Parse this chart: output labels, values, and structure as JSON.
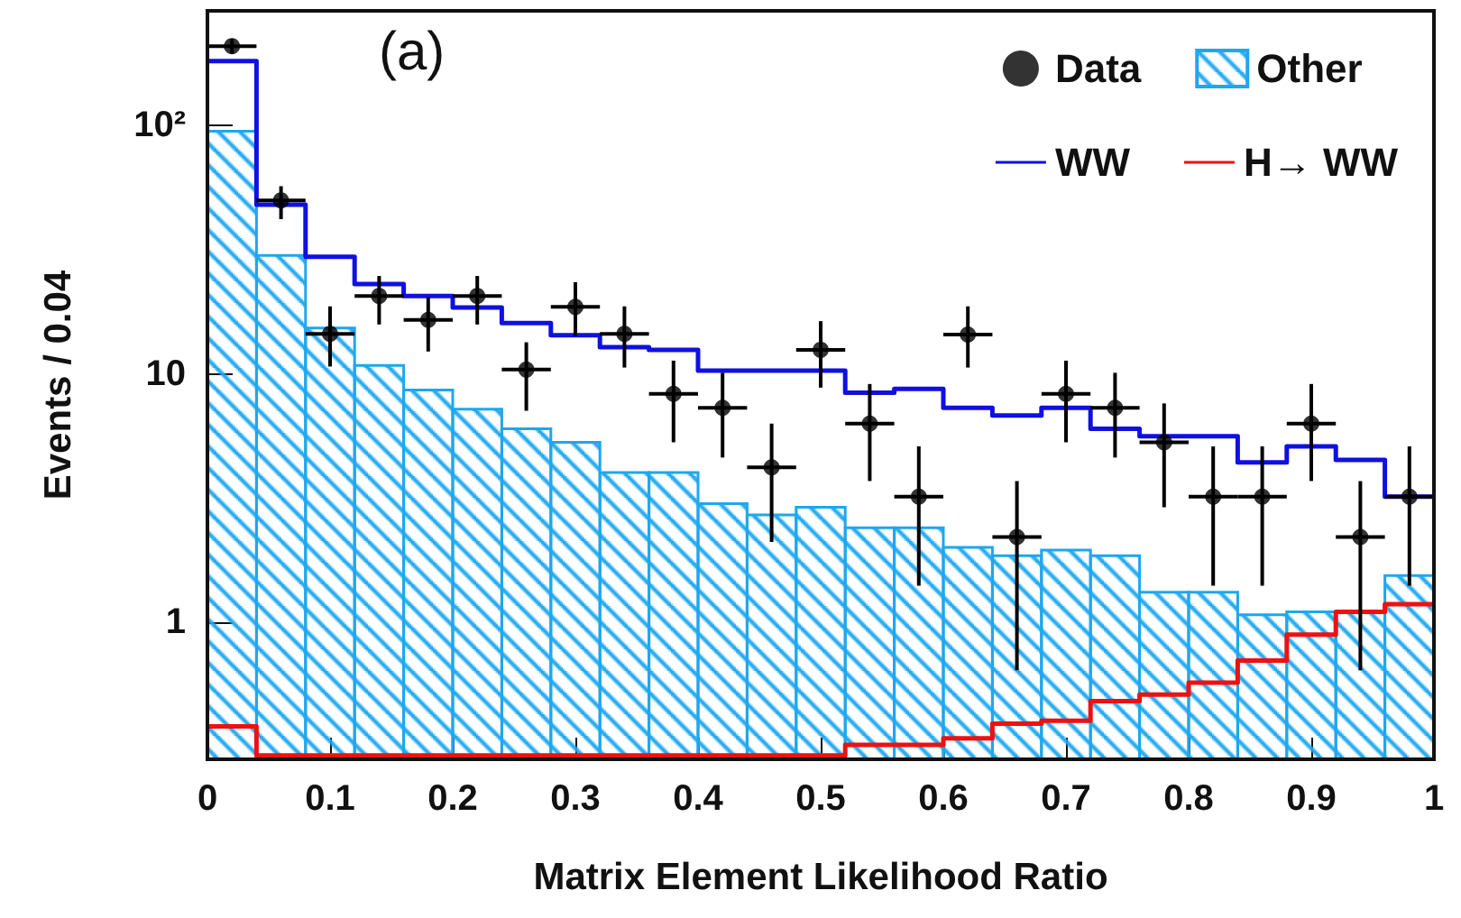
{
  "chart_data": {
    "type": "histogram",
    "xlabel": "Matrix Element Likelihood Ratio",
    "ylabel": "Events / 0.04",
    "annotations": [
      "(a)"
    ],
    "bins": [
      0,
      0.04,
      0.08,
      0.12,
      0.16,
      0.2,
      0.24,
      0.28,
      0.32,
      0.36,
      0.4,
      0.44,
      0.48,
      0.52,
      0.56,
      0.6,
      0.64,
      0.68,
      0.72,
      0.76,
      0.8,
      0.84,
      0.88,
      0.92,
      0.96,
      1
    ],
    "series": [
      {
        "name": "Data",
        "type": "scatter",
        "color": "#000000",
        "marker": "circle",
        "x": [
          0.02,
          0.06,
          0.1,
          0.14,
          0.18,
          0.22,
          0.26,
          0.3,
          0.34,
          0.38,
          0.42,
          0.46,
          0.5,
          0.54,
          0.58,
          0.62,
          0.66,
          0.7,
          0.74,
          0.78,
          0.82,
          0.86,
          0.9,
          0.94,
          0.98
        ],
        "values": [
          209,
          50,
          14.5,
          20.6,
          16.5,
          20.6,
          10.4,
          18.6,
          14.5,
          8.3,
          7.3,
          4.2,
          12.5,
          6.3,
          3.2,
          14.4,
          2.2,
          8.3,
          7.3,
          5.3,
          3.2,
          3.2,
          6.3,
          2.2,
          3.2
        ],
        "errors": [
          [
            195,
            224
          ],
          [
            42,
            57
          ],
          [
            10.7,
            18.7
          ],
          [
            15.8,
            24.8
          ],
          [
            12.3,
            20.4
          ],
          [
            15.8,
            24.8
          ],
          [
            7.1,
            13.4
          ],
          [
            14.2,
            23.4
          ],
          [
            10.6,
            18.7
          ],
          [
            5.3,
            11.3
          ],
          [
            4.6,
            10.1
          ],
          [
            2.1,
            6.3
          ],
          [
            8.8,
            16.3
          ],
          [
            3.7,
            9.1
          ],
          [
            1.4,
            5.1
          ],
          [
            10.6,
            18.7
          ],
          [
            0.64,
            3.7
          ],
          [
            5.3,
            11.3
          ],
          [
            4.6,
            10.1
          ],
          [
            2.9,
            7.6
          ],
          [
            1.4,
            5.1
          ],
          [
            1.4,
            5.1
          ],
          [
            3.7,
            9.1
          ],
          [
            0.64,
            3.7
          ],
          [
            1.4,
            5.1
          ]
        ],
        "xerrors": [
          0.02,
          0.02,
          0.02,
          0.02,
          0.02,
          0.02,
          0.02,
          0.02,
          0.02,
          0.02,
          0.02,
          0.02,
          0.02,
          0.02,
          0.02,
          0.02,
          0.02,
          0.02,
          0.02,
          0.02,
          0.02,
          0.02,
          0.02,
          0.02,
          0.02
        ]
      },
      {
        "name": "Other",
        "color": "#1ea7ee",
        "values": [
          95,
          30,
          15.3,
          10.8,
          8.6,
          7.2,
          6.0,
          5.3,
          4.0,
          4.0,
          3.0,
          2.7,
          2.9,
          2.4,
          2.4,
          2.0,
          1.85,
          1.95,
          1.85,
          1.32,
          1.32,
          1.07,
          1.1,
          1.1,
          1.54
        ]
      },
      {
        "name": "WW",
        "type": "step",
        "color": "#1010e0",
        "x": [
          0,
          0.04,
          0.08,
          0.12,
          0.16,
          0.2,
          0.24,
          0.28,
          0.32,
          0.36,
          0.4,
          0.44,
          0.48,
          0.52,
          0.56,
          0.6,
          0.64,
          0.68,
          0.72,
          0.76,
          0.8,
          0.84,
          0.88,
          0.92,
          0.96,
          1
        ],
        "values": [
          182,
          48,
          29.6,
          23,
          20.6,
          18.5,
          16,
          14.3,
          12.8,
          12.5,
          10.3,
          10.3,
          10.3,
          8.4,
          8.7,
          7.3,
          6.8,
          7.3,
          6.0,
          5.6,
          5.6,
          4.4,
          5.1,
          4.5,
          3.2,
          3.2
        ]
      },
      {
        "name": "H→ WW",
        "type": "step",
        "color": "#ee1111",
        "x": [
          0,
          0.04,
          0.08,
          0.12,
          0.16,
          0.2,
          0.24,
          0.28,
          0.32,
          0.36,
          0.4,
          0.44,
          0.48,
          0.52,
          0.56,
          0.6,
          0.64,
          0.68,
          0.72,
          0.76,
          0.8,
          0.84,
          0.88,
          0.92,
          0.96,
          1
        ],
        "values": [
          0.38,
          0.29,
          0.29,
          0.29,
          0.29,
          0.29,
          0.29,
          0.29,
          0.29,
          0.29,
          0.29,
          0.29,
          0.29,
          0.32,
          0.32,
          0.34,
          0.39,
          0.4,
          0.48,
          0.51,
          0.57,
          0.7,
          0.89,
          1.1,
          1.18,
          1.18
        ]
      }
    ],
    "xlim": [
      0,
      1
    ],
    "xticks": [
      0,
      0.1,
      0.2,
      0.3,
      0.4,
      0.5,
      0.6,
      0.7,
      0.8,
      0.9,
      1
    ],
    "log": "y",
    "ylim": [
      0.28,
      290
    ],
    "yticks": [
      1,
      10,
      {
        "value": 100,
        "label": "10²"
      }
    ],
    "grid": false,
    "legend": "top right"
  }
}
